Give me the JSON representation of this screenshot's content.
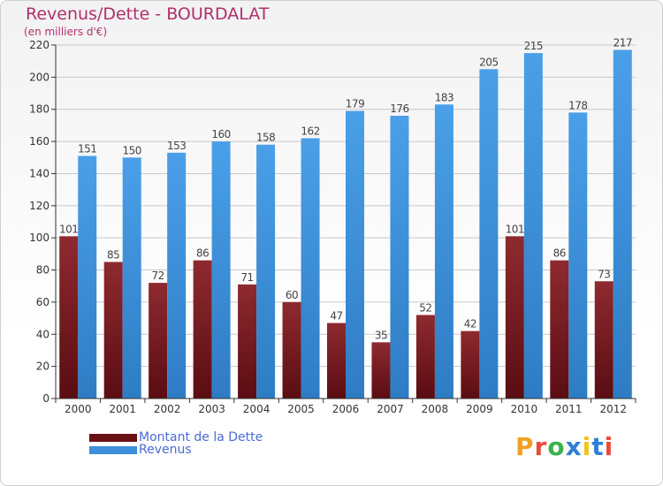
{
  "header": {
    "title": "Revenus/Dette - BOURDALAT",
    "subtitle": "(en milliers d'€)"
  },
  "legend": {
    "dette_label": "Montant de la Dette",
    "revenus_label": "Revenus"
  },
  "brand": {
    "letters": [
      "P",
      "r",
      "o",
      "x",
      "i",
      "t",
      "i"
    ],
    "colors": [
      "#f0a020",
      "#e84c3c",
      "#3db14a",
      "#2f7fd6",
      "#f0c419",
      "#2f7fd6",
      "#e84c3c"
    ]
  },
  "colors": {
    "dette": "#7a1a20",
    "revenus": "#3d8fd9",
    "grid": "#c8c8c8",
    "title": "#b0306a"
  },
  "chart_data": {
    "type": "bar",
    "title": "Revenus/Dette - BOURDALAT",
    "subtitle": "(en milliers d'€)",
    "xlabel": "",
    "ylabel": "",
    "ylim": [
      0,
      220
    ],
    "yticks": [
      0,
      20,
      40,
      60,
      80,
      100,
      120,
      140,
      160,
      180,
      200,
      220
    ],
    "grid": true,
    "legend_position": "bottom-left",
    "categories": [
      "2000",
      "2001",
      "2002",
      "2003",
      "2004",
      "2005",
      "2006",
      "2007",
      "2008",
      "2009",
      "2010",
      "2011",
      "2012"
    ],
    "series": [
      {
        "name": "Montant de la Dette",
        "values": [
          101,
          85,
          72,
          86,
          71,
          60,
          47,
          35,
          52,
          42,
          101,
          86,
          73
        ]
      },
      {
        "name": "Revenus",
        "values": [
          151,
          150,
          153,
          160,
          158,
          162,
          179,
          176,
          183,
          205,
          215,
          178,
          217
        ]
      }
    ]
  }
}
